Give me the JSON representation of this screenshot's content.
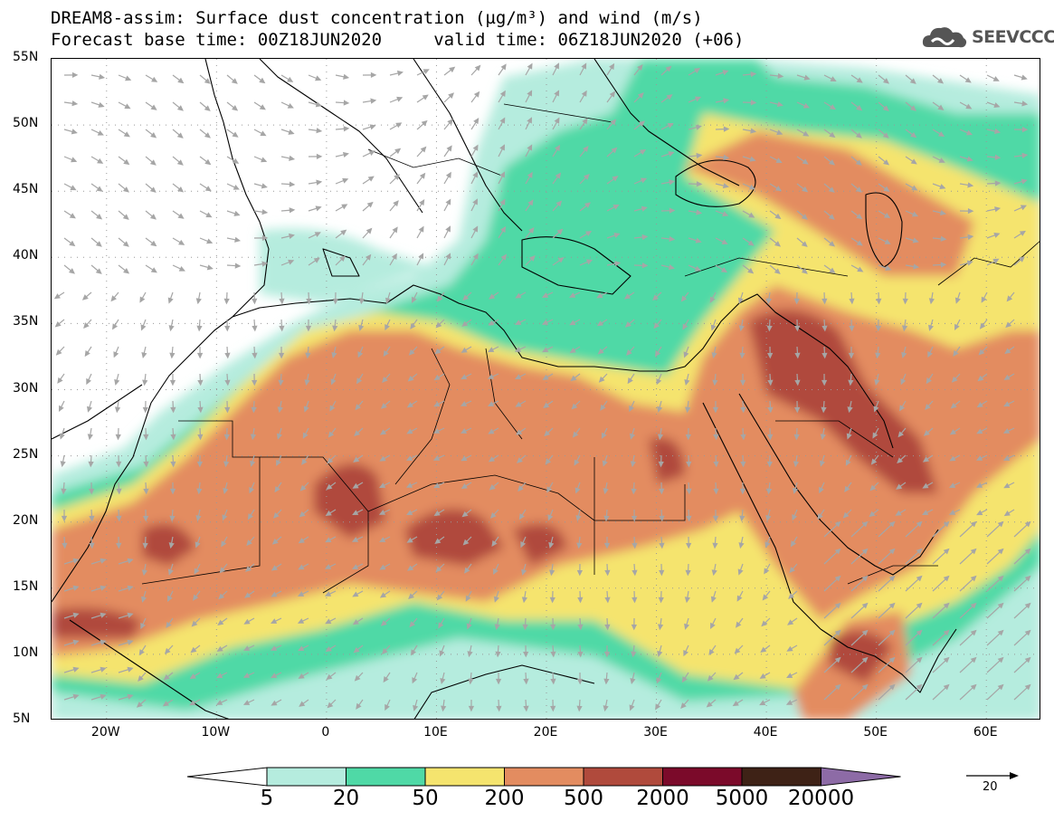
{
  "title": {
    "line1": "DREAM8-assim: Surface dust concentration (µg/m³) and wind (m/s)",
    "line2": "Forecast base time: 00Z18JUN2020     valid time: 06Z18JUN2020 (+06)"
  },
  "logo": {
    "text": "SEEVCCC",
    "icon": "cloud-icon"
  },
  "axes": {
    "lat_labels": [
      "55N",
      "50N",
      "45N",
      "40N",
      "35N",
      "30N",
      "25N",
      "20N",
      "15N",
      "10N",
      "5N"
    ],
    "lon_labels": [
      "20W",
      "10W",
      "0",
      "10E",
      "20E",
      "30E",
      "40E",
      "50E",
      "60E"
    ],
    "lat_range": [
      5,
      55
    ],
    "lon_range": [
      -25,
      65
    ]
  },
  "colorbar": {
    "labels": [
      "5",
      "20",
      "50",
      "200",
      "500",
      "2000",
      "5000",
      "20000"
    ],
    "colors": [
      "#ffffff",
      "#b5ecde",
      "#4fd9a6",
      "#f5e46e",
      "#e38c60",
      "#b04a3c",
      "#7b0a2a",
      "#3e2216",
      "#8d6ba6"
    ]
  },
  "wind_reference": {
    "label": "20",
    "units": "m/s"
  },
  "colors": {
    "grid": "#999999",
    "arrow": "#a6a6a6",
    "border": "#000000"
  }
}
